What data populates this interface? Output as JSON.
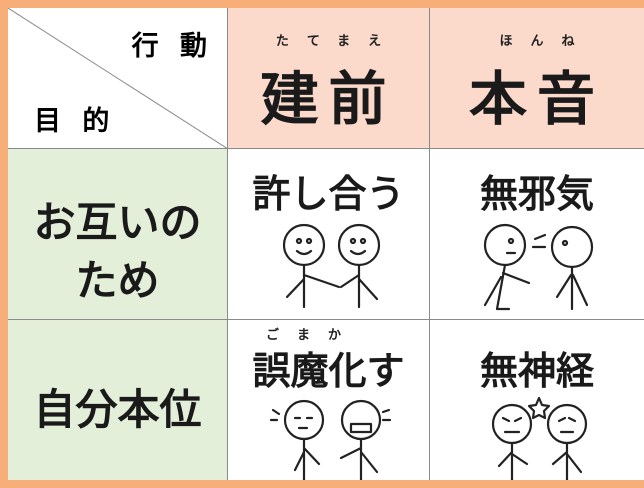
{
  "header": {
    "corner_top": "行 動",
    "corner_bottom": "目 的",
    "columns": [
      {
        "ruby": "たてまえ",
        "label": "建前"
      },
      {
        "ruby": "ほんね",
        "label": "本音"
      }
    ]
  },
  "rows": [
    {
      "label_lines": [
        "お互いの",
        "ため"
      ],
      "cells": [
        {
          "label": "許し合う"
        },
        {
          "label": "無邪気"
        }
      ]
    },
    {
      "label_lines": [
        "自分本位"
      ],
      "cells": [
        {
          "ruby": "ごまか",
          "label": "誤魔化す"
        },
        {
          "label": "無神経"
        }
      ]
    }
  ]
}
